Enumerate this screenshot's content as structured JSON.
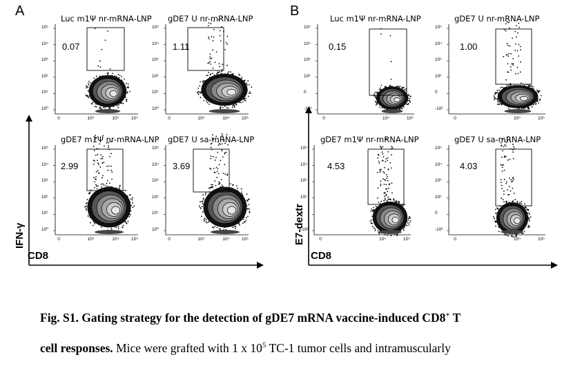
{
  "panels": [
    {
      "letter": "A",
      "y_axis_label": "IFN-γ",
      "x_axis_label": "CD8",
      "plots": [
        {
          "title": "Luc m1Ψ nr-mRNA-LNP",
          "gate_value": "0.07"
        },
        {
          "title": "gDE7 U nr-mRNA-LNP",
          "gate_value": "1.11"
        },
        {
          "title": "gDE7 m1Ψ nr-mRNA-LNP",
          "gate_value": "2.99"
        },
        {
          "title": "gDE7 U sa-mRNA-LNP",
          "gate_value": "3.69"
        }
      ],
      "x_ticks": [
        "0",
        "10³",
        "10⁴",
        "10⁵"
      ],
      "y_ticks": [
        "10⁵",
        "10⁴",
        "10³",
        "10²",
        "10¹",
        "10⁰"
      ]
    },
    {
      "letter": "B",
      "y_axis_label": "E7-dextr",
      "x_axis_label": "CD8",
      "plots": [
        {
          "title": "Luc m1Ψ nr-mRNA-LNP",
          "gate_value": "0.15"
        },
        {
          "title": "gDE7 U nr-mRNA-LNP",
          "gate_value": "1.00"
        },
        {
          "title": "gDE7 m1Ψ nr-mRNA-LNP",
          "gate_value": "4.53"
        },
        {
          "title": "gDE7 U sa-mRNA-LNP",
          "gate_value": "4.03"
        }
      ],
      "x_ticks": [
        "0",
        "10⁴",
        "10⁵"
      ],
      "y_ticks": [
        "10⁵",
        "10⁴",
        "10³",
        "10²",
        "0",
        "-10²"
      ]
    }
  ],
  "caption": {
    "line1_bold": "Fig. S1. Gating strategy for the detection of gDE7 mRNA vaccine-induced CD8",
    "line1_sup": "+",
    "line1_end": " T",
    "line2_bold": "cell responses.",
    "line2_text": " Mice were grafted with 1 x 10",
    "line2_sup": "5",
    "line2_end": " TC-1 tumor cells and intramuscularly"
  }
}
